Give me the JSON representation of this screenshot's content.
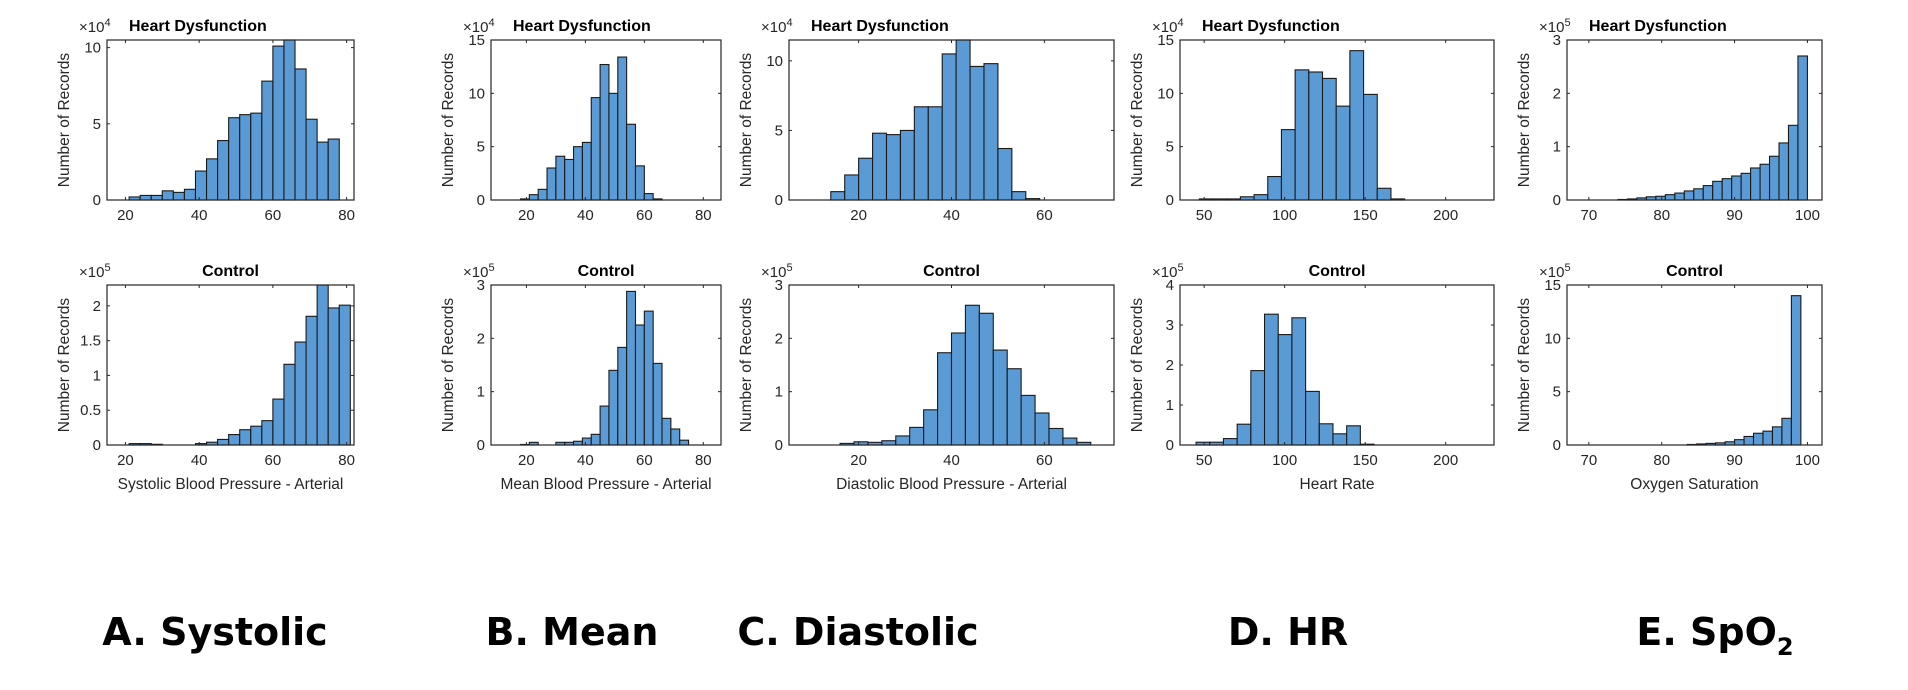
{
  "captions": [
    {
      "label": "A. Systolic",
      "sub": ""
    },
    {
      "label": "B. Mean",
      "sub": ""
    },
    {
      "label": "C. Diastolic",
      "sub": ""
    },
    {
      "label": "D. HR",
      "sub": ""
    },
    {
      "label": "E. SpO",
      "sub": "2"
    }
  ],
  "colors": {
    "bar_fill": "#5B9BD5",
    "bar_edge": "#1a1a1a",
    "axis": "#262626"
  },
  "chart_data": [
    {
      "type": "bar",
      "title": "Heart Dysfunction",
      "xlabel": "",
      "ylabel": "Number of Records",
      "exponent_base": "10",
      "exponent": "4",
      "xlim": [
        15,
        82
      ],
      "xticks": [
        20,
        40,
        60,
        80
      ],
      "ylim": [
        0,
        10.5
      ],
      "yticks": [
        0,
        5,
        10
      ],
      "bin_start": 21,
      "bin_width": 3,
      "values": [
        0.2,
        0.3,
        0.3,
        0.6,
        0.5,
        0.7,
        1.9,
        2.7,
        3.9,
        5.4,
        5.6,
        5.7,
        7.8,
        10.1,
        10.6,
        8.6,
        5.3,
        3.8,
        4.0
      ]
    },
    {
      "type": "bar",
      "title": "Heart Dysfunction",
      "xlabel": "",
      "ylabel": "Number of Records",
      "exponent_base": "10",
      "exponent": "4",
      "xlim": [
        8,
        86
      ],
      "xticks": [
        20,
        40,
        60,
        80
      ],
      "ylim": [
        0,
        15
      ],
      "yticks": [
        0,
        5,
        10,
        15
      ],
      "bin_start": 18,
      "bin_width": 3,
      "values": [
        0.1,
        0.5,
        1.0,
        3.0,
        4.1,
        3.8,
        5.0,
        5.4,
        9.6,
        12.7,
        10.0,
        13.4,
        7.1,
        3.2,
        0.6,
        0.1
      ]
    },
    {
      "type": "bar",
      "title": "Heart Dysfunction",
      "xlabel": "",
      "ylabel": "Number of Records",
      "exponent_base": "10",
      "exponent": "4",
      "xlim": [
        5,
        75
      ],
      "xticks": [
        20,
        40,
        60
      ],
      "ylim": [
        0,
        11.5
      ],
      "yticks": [
        0,
        5,
        10
      ],
      "bin_start": 14,
      "bin_width": 3,
      "values": [
        0.6,
        1.8,
        3.0,
        4.8,
        4.7,
        5.0,
        6.7,
        6.7,
        10.5,
        11.5,
        9.6,
        9.8,
        3.7,
        0.6,
        0.1
      ]
    },
    {
      "type": "bar",
      "title": "Heart Dysfunction",
      "xlabel": "",
      "ylabel": "Number of Records",
      "exponent_base": "10",
      "exponent": "4",
      "xlim": [
        35,
        230
      ],
      "xticks": [
        50,
        100,
        150,
        200
      ],
      "ylim": [
        0,
        15
      ],
      "yticks": [
        0,
        5,
        10,
        15
      ],
      "bin_start": 47,
      "bin_width": 8.5,
      "values": [
        0.1,
        0.1,
        0.1,
        0.3,
        0.5,
        2.2,
        6.6,
        12.2,
        12.0,
        11.4,
        8.8,
        14.0,
        9.9,
        1.1,
        0.1
      ]
    },
    {
      "type": "bar",
      "title": "Heart Dysfunction",
      "xlabel": "",
      "ylabel": "Number of Records",
      "exponent_base": "10",
      "exponent": "5",
      "xlim": [
        67,
        102
      ],
      "xticks": [
        70,
        80,
        90,
        100
      ],
      "ylim": [
        0,
        3
      ],
      "yticks": [
        0,
        1,
        2,
        3
      ],
      "bin_start": 74,
      "bin_width": 1.3,
      "values": [
        0.01,
        0.02,
        0.04,
        0.06,
        0.07,
        0.1,
        0.13,
        0.17,
        0.21,
        0.27,
        0.35,
        0.4,
        0.45,
        0.5,
        0.6,
        0.67,
        0.82,
        1.07,
        1.4,
        2.7
      ]
    },
    {
      "type": "bar",
      "title": "Control",
      "xlabel": "Systolic Blood Pressure - Arterial",
      "ylabel": "Number of Records",
      "exponent_base": "10",
      "exponent": "5",
      "xlim": [
        15,
        82
      ],
      "xticks": [
        20,
        40,
        60,
        80
      ],
      "ylim": [
        0,
        2.3
      ],
      "yticks": [
        0,
        0.5,
        1,
        1.5,
        2
      ],
      "ytick_labels": [
        "0",
        "0.5",
        "1",
        "1.5",
        "2"
      ],
      "bin_start": 21,
      "bin_width": 3,
      "values": [
        0.02,
        0.02,
        0.01,
        0.0,
        0.0,
        0.0,
        0.02,
        0.04,
        0.08,
        0.15,
        0.22,
        0.27,
        0.35,
        0.66,
        1.16,
        1.48,
        1.85,
        2.32,
        1.97,
        2.01
      ]
    },
    {
      "type": "bar",
      "title": "Control",
      "xlabel": "Mean Blood Pressure - Arterial",
      "ylabel": "Number of Records",
      "exponent_base": "10",
      "exponent": "5",
      "xlim": [
        8,
        86
      ],
      "xticks": [
        20,
        40,
        60,
        80
      ],
      "ylim": [
        0,
        3
      ],
      "yticks": [
        0,
        1,
        2,
        3
      ],
      "bin_start": 18,
      "bin_width": 3,
      "values": [
        0.01,
        0.05,
        0.0,
        0.0,
        0.05,
        0.05,
        0.07,
        0.13,
        0.2,
        0.73,
        1.4,
        1.83,
        2.88,
        2.25,
        2.51,
        1.53,
        0.5,
        0.3,
        0.09
      ]
    },
    {
      "type": "bar",
      "title": "Control",
      "xlabel": "Diastolic Blood Pressure - Arterial",
      "ylabel": "Number of Records",
      "exponent_base": "10",
      "exponent": "5",
      "xlim": [
        5,
        75
      ],
      "xticks": [
        20,
        40,
        60
      ],
      "ylim": [
        0,
        3
      ],
      "yticks": [
        0,
        1,
        2,
        3
      ],
      "bin_start": 16,
      "bin_width": 3,
      "values": [
        0.03,
        0.06,
        0.05,
        0.08,
        0.17,
        0.33,
        0.66,
        1.73,
        2.1,
        2.62,
        2.47,
        1.78,
        1.43,
        0.93,
        0.6,
        0.31,
        0.13,
        0.05
      ]
    },
    {
      "type": "bar",
      "title": "Control",
      "xlabel": "Heart Rate",
      "ylabel": "Number of Records",
      "exponent_base": "10",
      "exponent": "5",
      "xlim": [
        35,
        230
      ],
      "xticks": [
        50,
        100,
        150,
        200
      ],
      "ylim": [
        0,
        4
      ],
      "yticks": [
        0,
        1,
        2,
        3,
        4
      ],
      "bin_start": 45,
      "bin_width": 8.5,
      "values": [
        0.07,
        0.07,
        0.16,
        0.52,
        1.86,
        3.27,
        2.76,
        3.18,
        1.34,
        0.53,
        0.28,
        0.48,
        0.02
      ]
    },
    {
      "type": "bar",
      "title": "Control",
      "xlabel": "Oxygen Saturation",
      "ylabel": "Number of Records",
      "exponent_base": "10",
      "exponent": "5",
      "xlim": [
        67,
        102
      ],
      "xticks": [
        70,
        80,
        90,
        100
      ],
      "ylim": [
        0,
        15
      ],
      "yticks": [
        0,
        5,
        10,
        15
      ],
      "bin_start": 83.5,
      "bin_width": 1.3,
      "values": [
        0.05,
        0.1,
        0.15,
        0.2,
        0.3,
        0.5,
        0.8,
        1.1,
        1.3,
        1.7,
        2.5,
        14.0
      ]
    }
  ]
}
